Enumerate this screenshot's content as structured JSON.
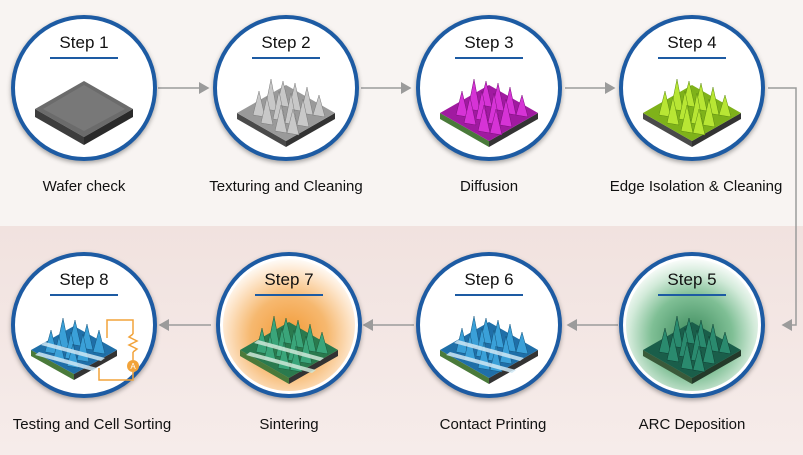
{
  "steps": [
    {
      "label": "Step 1",
      "caption": "Wafer check"
    },
    {
      "label": "Step 2",
      "caption": "Texturing and Cleaning"
    },
    {
      "label": "Step 3",
      "caption": "Diffusion"
    },
    {
      "label": "Step 4",
      "caption": "Edge Isolation & Cleaning"
    },
    {
      "label": "Step 5",
      "caption": "ARC Deposition"
    },
    {
      "label": "Step 6",
      "caption": "Contact Printing"
    },
    {
      "label": "Step 7",
      "caption": "Sintering"
    },
    {
      "label": "Step 8",
      "caption": "Testing and Cell Sorting"
    }
  ],
  "colors": {
    "ring": "#1d5ba3",
    "arrow": "#9b9b9b",
    "wafer": "#5e5e5e",
    "texture": "#b0b0b0",
    "diffusion": "#cc22cc",
    "edge": "#a8dc22",
    "arc": "#1f6e5a",
    "contact": "#2a8ccc",
    "sinter_glow": "#f39a36",
    "meter": "#f2a33a"
  }
}
